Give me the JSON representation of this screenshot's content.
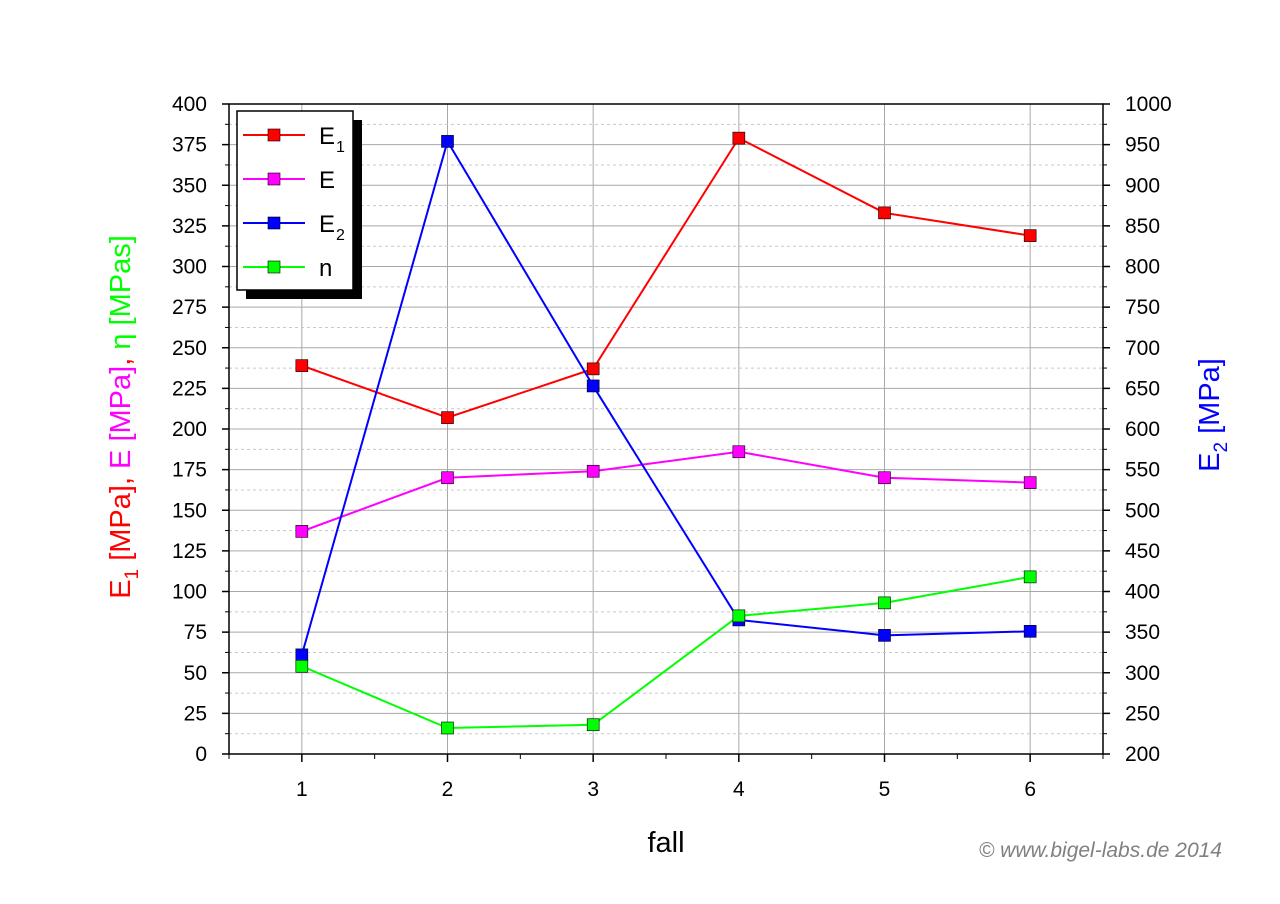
{
  "chart_data": {
    "type": "line",
    "x": [
      1,
      2,
      3,
      4,
      5,
      6
    ],
    "xlabel": "fall",
    "xlim": [
      0.5,
      6.5
    ],
    "ylim_left": [
      0,
      400
    ],
    "ylim_right": [
      200,
      1000
    ],
    "left_ticks": [
      0,
      25,
      50,
      75,
      100,
      125,
      150,
      175,
      200,
      225,
      250,
      275,
      300,
      325,
      350,
      375,
      400
    ],
    "right_ticks": [
      200,
      250,
      300,
      350,
      400,
      450,
      500,
      550,
      600,
      650,
      700,
      750,
      800,
      850,
      900,
      950,
      1000
    ],
    "x_ticks": [
      1,
      2,
      3,
      4,
      5,
      6
    ],
    "ylabel_left": {
      "parts": [
        {
          "text": "E",
          "color": "#ff0000"
        },
        {
          "text": "1",
          "color": "#ff0000",
          "sub": true
        },
        {
          "text": " [MPa], ",
          "color": "#ff0000"
        },
        {
          "text": "E [MPa]",
          "color": "#ff00ff"
        },
        {
          "text": ", ",
          "color": "#ff0000"
        },
        {
          "text": "η [MPas]",
          "color": "#00ff00"
        }
      ]
    },
    "ylabel_right": {
      "parts": [
        {
          "text": "E",
          "color": "#0000ff"
        },
        {
          "text": "2",
          "color": "#0000ff",
          "sub": true
        },
        {
          "text": " [MPa]",
          "color": "#0000ff"
        }
      ]
    },
    "grid": true,
    "legend_placement": "top-left",
    "series": [
      {
        "name": "E",
        "sub": "1",
        "axis": "left",
        "color": "#ff0000",
        "values": [
          239,
          207,
          237,
          379,
          333,
          319
        ]
      },
      {
        "name": "E",
        "sub": "",
        "axis": "left",
        "color": "#ff00ff",
        "values": [
          137,
          170,
          174,
          186,
          170,
          167
        ]
      },
      {
        "name": "E",
        "sub": "2",
        "axis": "right",
        "color": "#0000ff",
        "values": [
          322,
          954,
          653,
          365,
          346,
          351
        ]
      },
      {
        "name": "n",
        "sub": "",
        "axis": "left",
        "color": "#00ff00",
        "values": [
          54,
          16,
          18,
          85,
          93,
          109
        ]
      }
    ]
  },
  "credit": "© www.bigel-labs.de 2014"
}
